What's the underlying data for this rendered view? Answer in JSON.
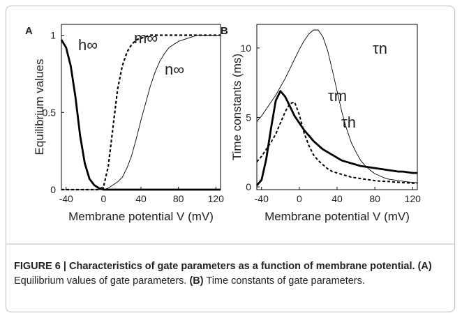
{
  "chart_data": [
    {
      "type": "line",
      "panel": "A",
      "ylabel": "Equilibrium values",
      "xlabel": "Membrane potential V (mV)",
      "x": [
        -45,
        -40,
        -35,
        -30,
        -25,
        -20,
        -15,
        -10,
        -5,
        0,
        5,
        10,
        15,
        20,
        25,
        30,
        35,
        40,
        45,
        50,
        55,
        60,
        65,
        70,
        75,
        80,
        85,
        90,
        95,
        100,
        105,
        110,
        115,
        120,
        125
      ],
      "xlim": [
        -45,
        125
      ],
      "xticks": [
        -40,
        0,
        40,
        80,
        120
      ],
      "ylim": [
        0,
        1.07
      ],
      "yticks": [
        0,
        0.5,
        1
      ],
      "series": [
        {
          "name": "h∞",
          "color": "#000000",
          "width": 2.8,
          "dash": "none",
          "values": [
            0.97,
            0.92,
            0.8,
            0.6,
            0.35,
            0.17,
            0.07,
            0.03,
            0.01,
            0,
            0,
            0,
            0,
            0,
            0,
            0,
            0,
            0,
            0,
            0,
            0,
            0,
            0,
            0,
            0,
            0,
            0,
            0,
            0,
            0,
            0,
            0,
            0,
            0,
            0
          ]
        },
        {
          "name": "m∞",
          "color": "#000000",
          "width": 2.2,
          "dash": "4 3",
          "values": [
            0,
            0,
            0,
            0,
            0,
            0,
            0,
            0,
            0,
            0.02,
            0.15,
            0.4,
            0.65,
            0.8,
            0.89,
            0.94,
            0.97,
            0.98,
            0.99,
            1,
            1,
            1,
            1,
            1,
            1,
            1,
            1,
            1,
            1,
            1,
            1,
            1,
            1,
            1,
            1
          ]
        },
        {
          "name": "n∞",
          "color": "#000000",
          "width": 0.9,
          "dash": "none",
          "values": [
            0,
            0,
            0,
            0,
            0,
            0,
            0,
            0,
            0,
            0,
            0.01,
            0.03,
            0.05,
            0.08,
            0.14,
            0.22,
            0.33,
            0.45,
            0.56,
            0.67,
            0.76,
            0.83,
            0.88,
            0.92,
            0.94,
            0.96,
            0.97,
            0.98,
            0.99,
            1,
            1,
            1,
            1,
            1,
            1
          ]
        }
      ]
    },
    {
      "type": "line",
      "panel": "B",
      "ylabel": "Time constants (ms)",
      "xlabel": "Membrane potential V (mV)",
      "x": [
        -45,
        -40,
        -35,
        -30,
        -25,
        -20,
        -15,
        -10,
        -5,
        0,
        5,
        10,
        15,
        20,
        25,
        30,
        35,
        40,
        45,
        50,
        55,
        60,
        65,
        70,
        75,
        80,
        85,
        90,
        95,
        100,
        105,
        110,
        115,
        120,
        125
      ],
      "xlim": [
        -45,
        125
      ],
      "xticks": [
        -40,
        0,
        40,
        80,
        120
      ],
      "ylim": [
        -0.2,
        11.7
      ],
      "yticks": [
        0,
        5,
        10
      ],
      "series": [
        {
          "name": "τn",
          "color": "#000000",
          "width": 0.9,
          "dash": "none",
          "values": [
            4.7,
            5.1,
            5.6,
            6.1,
            6.6,
            7.2,
            7.8,
            8.5,
            9.2,
            9.9,
            10.5,
            11.0,
            11.3,
            11.3,
            10.8,
            9.8,
            8.4,
            6.9,
            5.4,
            4.2,
            3.2,
            2.5,
            1.9,
            1.5,
            1.2,
            0.95,
            0.8,
            0.65,
            0.55,
            0.5,
            0.45,
            0.4,
            0.35,
            0.32,
            0.3
          ]
        },
        {
          "name": "τm",
          "color": "#000000",
          "width": 2.0,
          "dash": "4 3",
          "values": [
            1.8,
            2.2,
            2.7,
            3.2,
            3.8,
            4.6,
            5.4,
            6.0,
            6.1,
            5.2,
            3.9,
            3.0,
            2.3,
            1.9,
            1.6,
            1.3,
            1.1,
            1.0,
            0.9,
            0.8,
            0.7,
            0.65,
            0.6,
            0.55,
            0.5,
            0.45,
            0.42,
            0.4,
            0.38,
            0.35,
            0.33,
            0.3,
            0.28,
            0.26,
            0.25
          ]
        },
        {
          "name": "τh",
          "color": "#000000",
          "width": 2.8,
          "dash": "none",
          "values": [
            0.1,
            0.5,
            2.0,
            4.2,
            6.2,
            6.9,
            6.5,
            5.8,
            5.1,
            4.6,
            4.1,
            3.7,
            3.3,
            3.0,
            2.7,
            2.5,
            2.3,
            2.1,
            1.9,
            1.8,
            1.7,
            1.6,
            1.5,
            1.45,
            1.4,
            1.35,
            1.3,
            1.25,
            1.2,
            1.15,
            1.1,
            1.1,
            1.05,
            1.0,
            1.0
          ]
        }
      ]
    }
  ],
  "caption": {
    "title": "FIGURE 6 | Characteristics of gate parameters as a function of membrane potential.",
    "a_label": "(A)",
    "a_text": " Equilibrium values of gate parameters. ",
    "b_label": "(B)",
    "b_text": " Time constants of gate parameters."
  }
}
